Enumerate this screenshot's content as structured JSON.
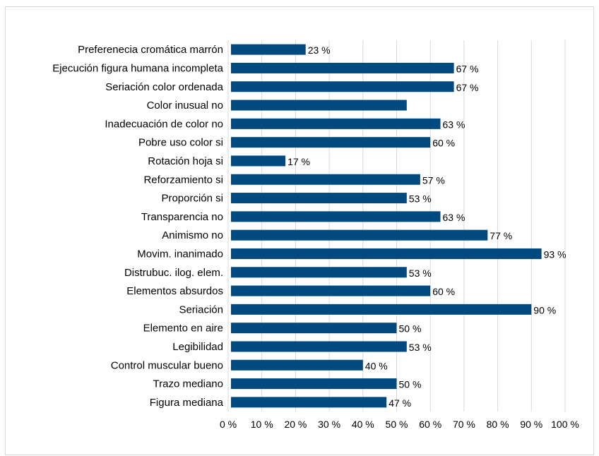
{
  "chart_data": {
    "type": "bar",
    "orientation": "horizontal",
    "title": "",
    "xlabel": "",
    "ylabel": "",
    "xlim": [
      0,
      100
    ],
    "grid": true,
    "legend": "none",
    "bar_color": "#004a80",
    "grid_color": "#d9d9d9",
    "tick_labels": [
      "0 %",
      "10 %",
      "20 %",
      "30 %",
      "40 %",
      "50 %",
      "60 %",
      "70 %",
      "80 %",
      "90 %",
      "100 %"
    ],
    "categories": [
      "Preferenecia cromática marrón",
      "Ejecución figura humana incompleta",
      "Seriación color ordenada",
      "Color inusual no",
      "Inadecuación de color no",
      "Pobre uso color si",
      "Rotación hoja si",
      "Reforzamiento si",
      "Proporción si",
      "Transparencia no",
      "Animismo no",
      "Movim. inanimado",
      "Distrubuc. ilog. elem.",
      "Elementos absurdos",
      "Seriación",
      "Elemento en aire",
      "Legibilidad",
      "Control muscular bueno",
      "Trazo mediano",
      "Figura mediana"
    ],
    "values": [
      23,
      67,
      67,
      53,
      63,
      60,
      17,
      57,
      53,
      63,
      77,
      93,
      53,
      60,
      90,
      50,
      53,
      40,
      50,
      47
    ],
    "data_labels": [
      "23 %",
      "67 %",
      "67 %",
      "",
      "63 %",
      "60 %",
      "17 %",
      "57 %",
      "53 %",
      "63 %",
      "77 %",
      "93 %",
      "53 %",
      "60 %",
      "90 %",
      "50 %",
      "53 %",
      "40 %",
      "50 %",
      "47 %"
    ]
  }
}
